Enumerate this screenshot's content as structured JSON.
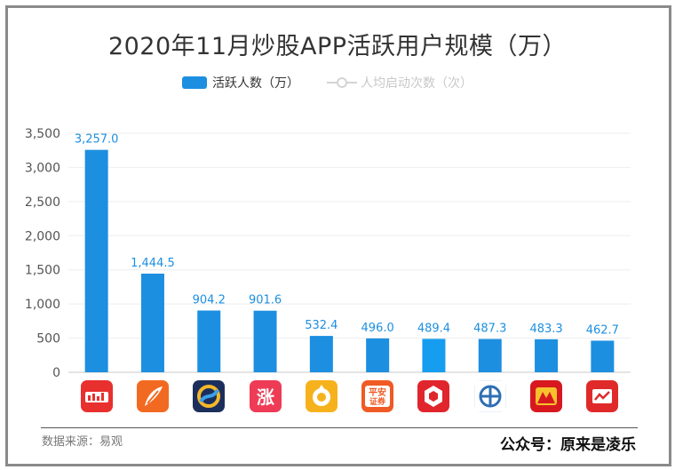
{
  "title": "2020年11月炒股APP活跃用户规模（万）",
  "legend": {
    "bar_series": "活跃人数（万）",
    "line_series": "人均启动次数（次）"
  },
  "footer": {
    "source": "数据来源：易观",
    "account": "公众号：原来是凌乐"
  },
  "colors": {
    "bar": "#1d8fe0",
    "highlight_bar": "#169df0",
    "label": "#1d8fe0"
  },
  "chart_data": {
    "type": "bar",
    "categories": [
      "app-1",
      "app-2",
      "app-3",
      "app-4",
      "app-5",
      "app-6",
      "app-7",
      "app-8",
      "app-9",
      "app-10"
    ],
    "category_icons": [
      "red-chart-app-icon",
      "orange-feather-app-icon",
      "navy-swirl-app-icon",
      "pink-zhang-app-icon",
      "yellow-round-app-icon",
      "pingan-securities-app-icon",
      "red-cube-app-icon",
      "blue-emblem-app-icon",
      "red-mountain-app-icon",
      "red-box-app-icon"
    ],
    "series": [
      {
        "name": "活跃人数（万）",
        "values": [
          3257.0,
          1444.5,
          904.2,
          901.6,
          532.4,
          496.0,
          489.4,
          487.3,
          483.3,
          462.7
        ],
        "labels": [
          "3,257.0",
          "1,444.5",
          "904.2",
          "901.6",
          "532.4",
          "496.0",
          "489.4",
          "487.3",
          "483.3",
          "462.7"
        ]
      },
      {
        "name": "人均启动次数（次）",
        "hidden": true
      }
    ],
    "ylim": [
      0,
      3500
    ],
    "yticks": [
      0,
      500,
      1000,
      1500,
      2000,
      2500,
      3000,
      3500
    ],
    "ytick_labels": [
      "0",
      "500",
      "1,000",
      "1,500",
      "2,000",
      "2,500",
      "3,000",
      "3,500"
    ],
    "grid": true,
    "legend_position": "top-center"
  }
}
